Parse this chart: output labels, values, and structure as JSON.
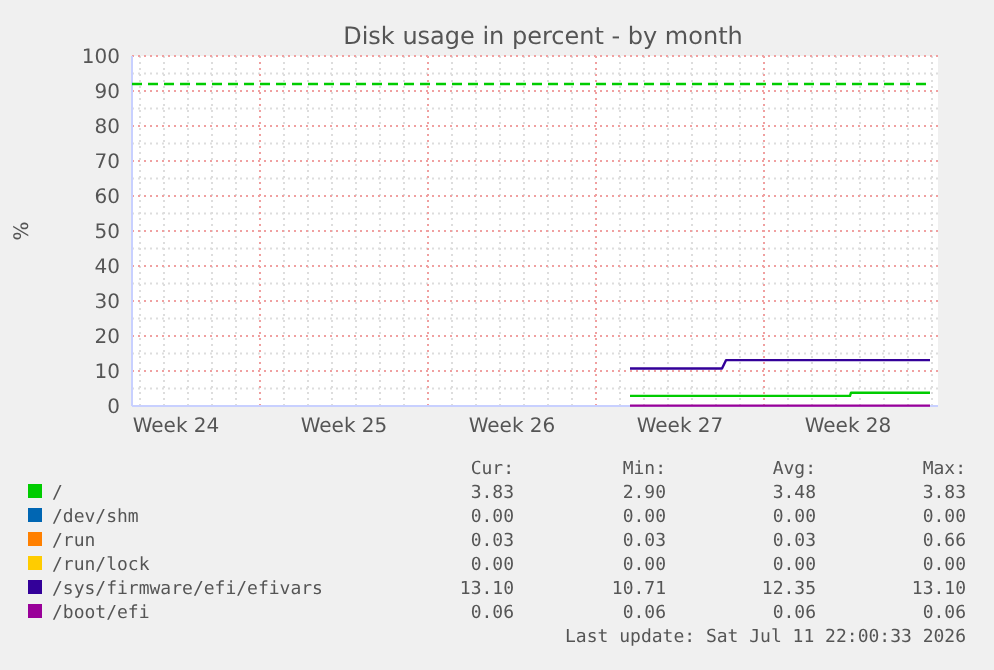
{
  "chart_data": {
    "type": "line",
    "title": "Disk usage in percent - by month",
    "ylabel": "%",
    "xlim": [
      "2026-06-09T16:00",
      "2026-07-13T06:00"
    ],
    "xticks": [
      {
        "value": "2026-06-11T12:00",
        "label": "Week 24"
      },
      {
        "value": "2026-06-18T12:00",
        "label": "Week 25"
      },
      {
        "value": "2026-06-25T12:00",
        "label": "Week 26"
      },
      {
        "value": "2026-07-02T12:00",
        "label": "Week 27"
      },
      {
        "value": "2026-07-09T12:00",
        "label": "Week 28"
      }
    ],
    "ylim": [
      0,
      100
    ],
    "yticks": [
      0,
      10,
      20,
      30,
      40,
      50,
      60,
      70,
      80,
      90,
      100
    ],
    "grid": true,
    "legend": "bottom",
    "line_style": "solid",
    "series": [
      {
        "name": "/",
        "color": "#00cc00",
        "x": [
          "2026-06-30T10:00",
          "2026-07-09T14:00",
          "2026-07-09T15:00",
          "2026-07-12T22:00"
        ],
        "values": [
          2.9,
          2.9,
          3.8,
          3.8
        ]
      },
      {
        "name": "/dev/shm",
        "color": "#0066b3"
      },
      {
        "name": "/run",
        "color": "#ff8000"
      },
      {
        "name": "/run/lock",
        "color": "#ffcc00"
      },
      {
        "name": "/sys/firmware/efi/efivars",
        "color": "#330099",
        "x": [
          "2026-06-30T10:00",
          "2026-07-04T06:00",
          "2026-07-04T10:00",
          "2026-07-12T22:00"
        ],
        "values": [
          10.7,
          10.7,
          13.1,
          13.1
        ]
      },
      {
        "name": "/boot/efi",
        "color": "#990099",
        "x": [
          "2026-06-30T10:00",
          "2026-07-12T22:00"
        ],
        "values": [
          0.1,
          0.1
        ]
      }
    ],
    "ref_lines": [
      {
        "axis": "y",
        "value": 92,
        "label": null,
        "color": "#00cc00",
        "line_style": "dashed"
      }
    ],
    "annotations": [
      "Cur:",
      "Min:",
      "Avg:",
      "Max:",
      "3.83",
      "2.90",
      "3.48",
      "3.83",
      "0.00",
      "0.00",
      "0.00",
      "0.00",
      "0.03",
      "0.03",
      "0.03",
      "0.66",
      "0.00",
      "0.00",
      "0.00",
      "0.00",
      "13.10",
      "10.71",
      "12.35",
      "13.10",
      "0.06",
      "0.06",
      "0.06",
      "0.06",
      "Last update: Sat Jul 11 22:00:33 2026"
    ]
  }
}
